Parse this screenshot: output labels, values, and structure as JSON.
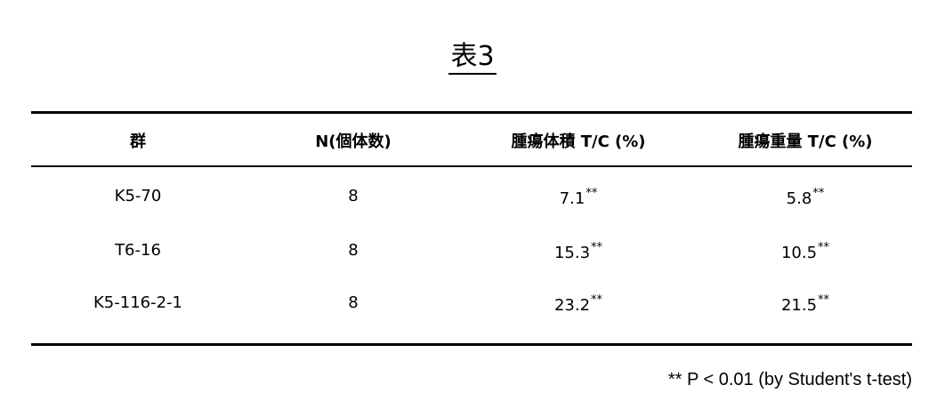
{
  "title": "表3",
  "table": {
    "headers": [
      "群",
      "N(個体数)",
      "腫瘍体積 T/C (%)",
      "腫瘍重量 T/C (%)"
    ],
    "rows": [
      {
        "group": "K5-70",
        "n": "8",
        "volume": "7.1",
        "volume_mark": "**",
        "weight": "5.8",
        "weight_mark": "**"
      },
      {
        "group": "T6-16",
        "n": "8",
        "volume": "15.3",
        "volume_mark": "**",
        "weight": "10.5",
        "weight_mark": "**"
      },
      {
        "group": "K5-116-2-1",
        "n": "8",
        "volume": "23.2",
        "volume_mark": "**",
        "weight": "21.5",
        "weight_mark": "**"
      }
    ]
  },
  "footnote": "** P < 0.01 (by Student's t-test)"
}
